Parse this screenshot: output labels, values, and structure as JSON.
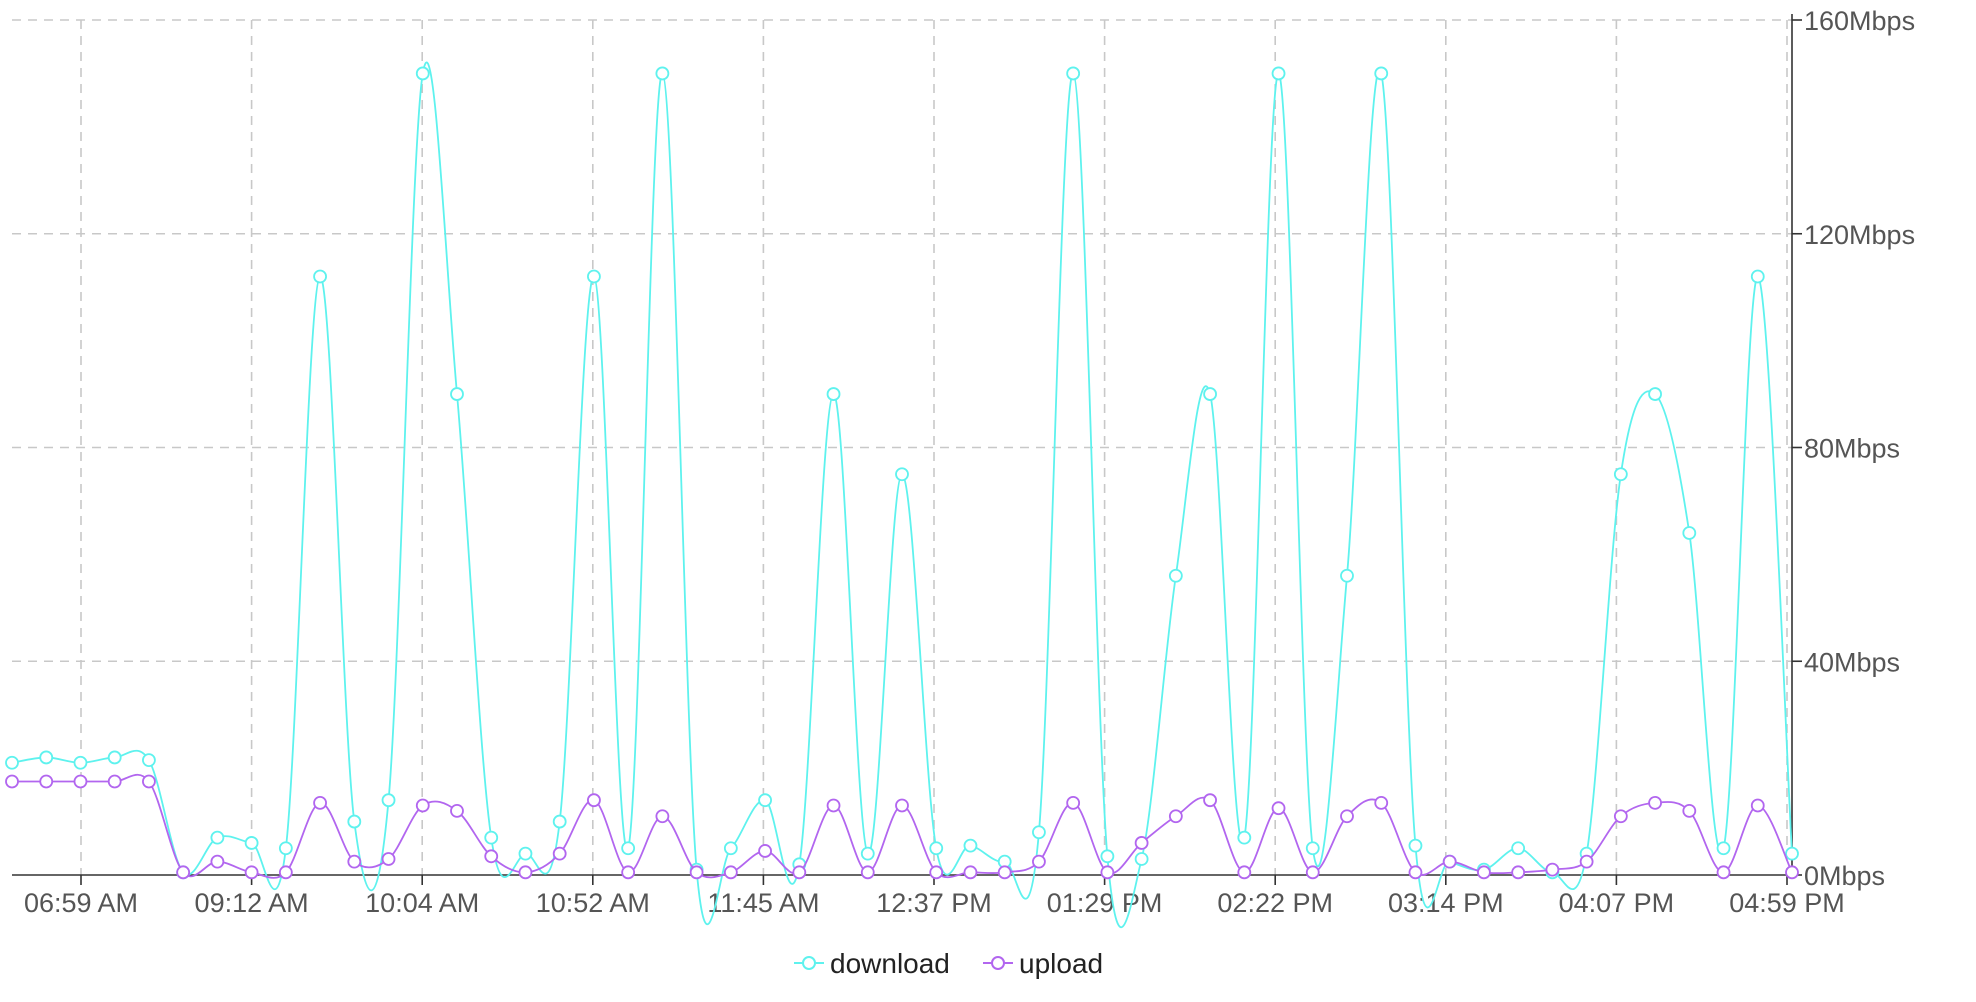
{
  "chart_data": {
    "type": "line",
    "x_ticks": [
      "06:59 AM",
      "09:12 AM",
      "10:04 AM",
      "10:52 AM",
      "11:45 AM",
      "12:37 PM",
      "01:29 PM",
      "02:22 PM",
      "03:14 PM",
      "04:07 PM",
      "04:59 PM"
    ],
    "y_ticks": [
      "0Mbps",
      "40Mbps",
      "80Mbps",
      "120Mbps",
      "160Mbps"
    ],
    "ylim": [
      0,
      160
    ],
    "y_unit": "Mbps",
    "grid": true,
    "legend_position": "bottom-center",
    "series": [
      {
        "name": "download",
        "color": "#5ef2ee",
        "values": [
          21,
          22,
          21,
          22,
          21.5,
          0.5,
          7,
          6,
          5,
          112,
          10,
          14,
          150,
          90,
          7,
          4,
          10,
          112,
          5,
          150,
          1,
          5,
          14,
          2,
          90,
          4,
          75,
          5,
          5.5,
          2.5,
          8,
          150,
          3.5,
          3,
          56,
          90,
          7,
          150,
          5,
          56,
          150,
          5.5,
          2.5,
          1,
          5,
          0.5,
          4,
          75,
          90,
          64,
          5,
          112,
          4
        ]
      },
      {
        "name": "upload",
        "color": "#b266ef",
        "values": [
          17.5,
          17.5,
          17.5,
          17.5,
          17.5,
          0.5,
          2.5,
          0.5,
          0.5,
          13.5,
          2.5,
          3,
          13,
          12,
          3.5,
          0.5,
          4,
          14,
          0.5,
          11,
          0.5,
          0.5,
          4.5,
          0.5,
          13,
          0.5,
          13,
          0.5,
          0.5,
          0.5,
          2.5,
          13.5,
          0.5,
          6,
          11,
          14,
          0.5,
          12.5,
          0.5,
          11,
          13.5,
          0.5,
          2.5,
          0.5,
          0.5,
          1,
          2.5,
          11,
          13.5,
          12,
          0.5,
          13,
          0.5
        ]
      }
    ]
  }
}
